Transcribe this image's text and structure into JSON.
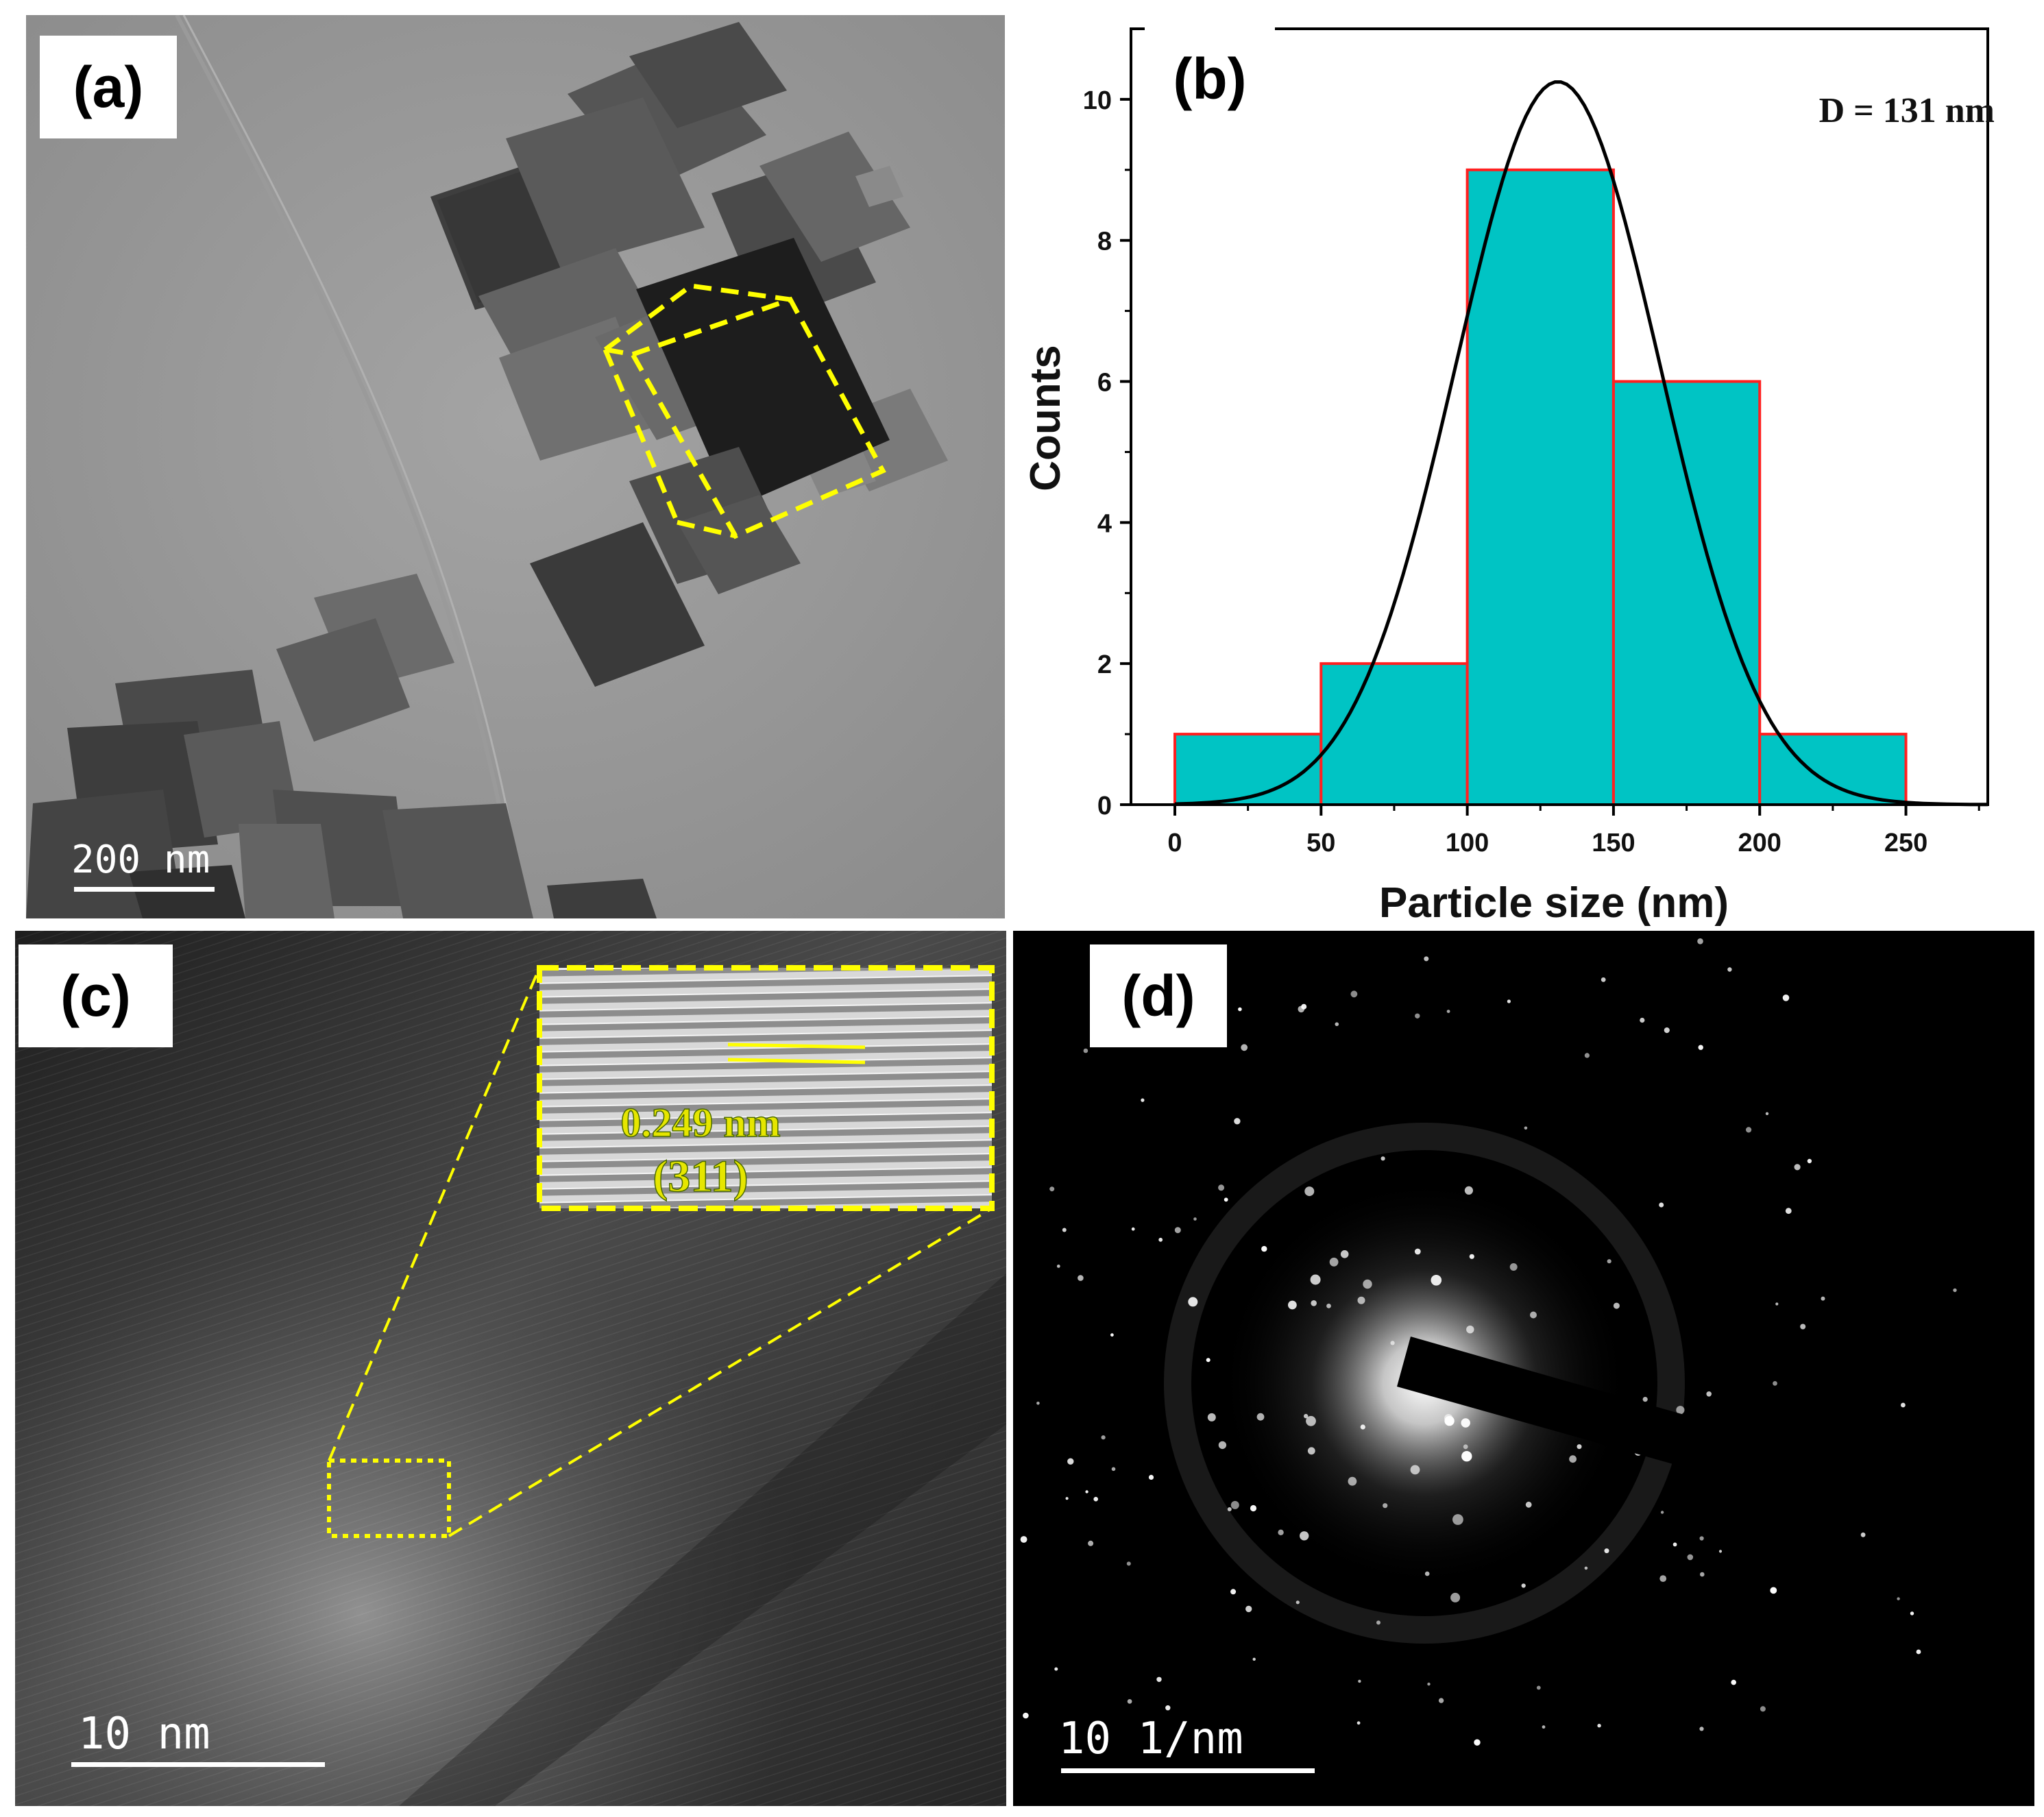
{
  "figure": {
    "panel_a": {
      "label": "(a)",
      "scale_bar": "200 nm"
    },
    "panel_b": {
      "label": "(b)",
      "annotation": "D = 131 nm"
    },
    "panel_c": {
      "label": "(c)",
      "scale_bar": "10 nm",
      "inset_spacing": "0.249 nm",
      "inset_plane": "(311)"
    },
    "panel_d": {
      "label": "(d)",
      "scale_bar": "10 1/nm"
    }
  },
  "colors": {
    "bar_fill": "#00c4c4",
    "bar_edge": "#ff2020",
    "fit_curve": "#000000",
    "highlight": "#ffff00",
    "tem_background": "#8c8c8c"
  },
  "chart_data": {
    "type": "bar",
    "xlabel": "Particle size (nm)",
    "ylabel": "Counts",
    "bins": [
      [
        0,
        50
      ],
      [
        50,
        100
      ],
      [
        100,
        150
      ],
      [
        150,
        200
      ],
      [
        200,
        250
      ]
    ],
    "values": [
      1,
      2,
      9,
      6,
      1
    ],
    "fit": {
      "type": "gaussian",
      "center": 131,
      "sigma": 35,
      "peak": 10.25
    },
    "xticks": [
      "0",
      "50",
      "100",
      "150",
      "200",
      "250"
    ],
    "yticks": [
      "0",
      "2",
      "4",
      "6",
      "8",
      "10"
    ],
    "xlim": [
      -15,
      278
    ],
    "ylim": [
      0,
      11
    ]
  }
}
